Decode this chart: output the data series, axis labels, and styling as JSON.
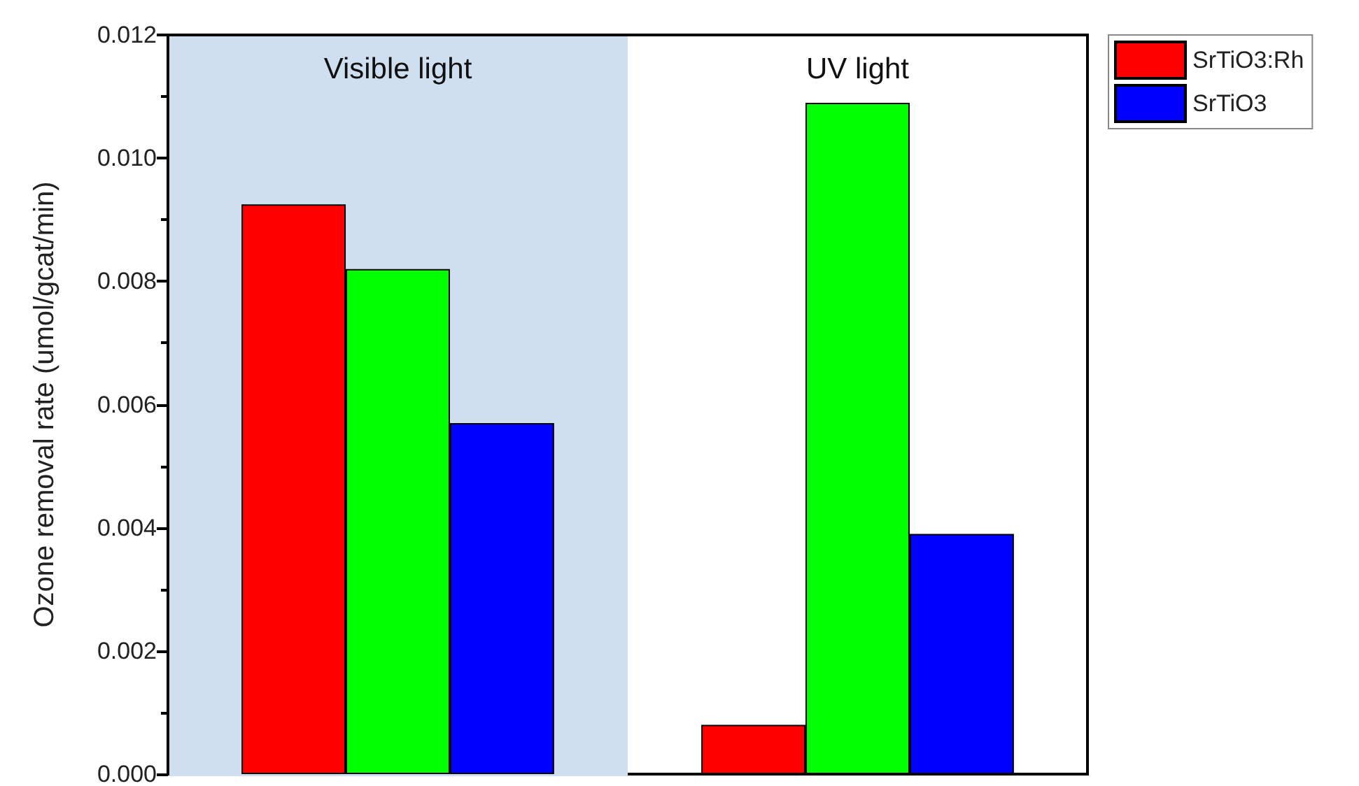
{
  "chart_data": {
    "type": "bar",
    "ylabel": "Ozone removal rate (umol/gcat/min)",
    "categories": [
      "Visible light",
      "UV light"
    ],
    "series": [
      {
        "name": "SrTiO3:Rh",
        "color": "#ff0000",
        "values": [
          0.00925,
          0.0008
        ]
      },
      {
        "color": "#00ff00",
        "values": [
          0.0082,
          0.0109
        ]
      },
      {
        "name": "SrTiO3",
        "color": "#0000ff",
        "values": [
          0.0057,
          0.0039
        ]
      }
    ],
    "ylim": [
      0,
      0.012
    ],
    "yticks": [
      {
        "value": 0,
        "label": "0.000"
      },
      {
        "value": 0.002,
        "label": "0.002"
      },
      {
        "value": 0.004,
        "label": "0.004"
      },
      {
        "value": 0.006,
        "label": "0.006"
      },
      {
        "value": 0.008,
        "label": "0.008"
      },
      {
        "value": 0.01,
        "label": "0.010"
      },
      {
        "value": 0.012,
        "label": "0.012"
      }
    ],
    "bands": [
      {
        "axis": "x",
        "from": "Visible light",
        "to": "Visible light",
        "color": "#cfdff0"
      }
    ],
    "grid": false,
    "legend": "top right"
  }
}
